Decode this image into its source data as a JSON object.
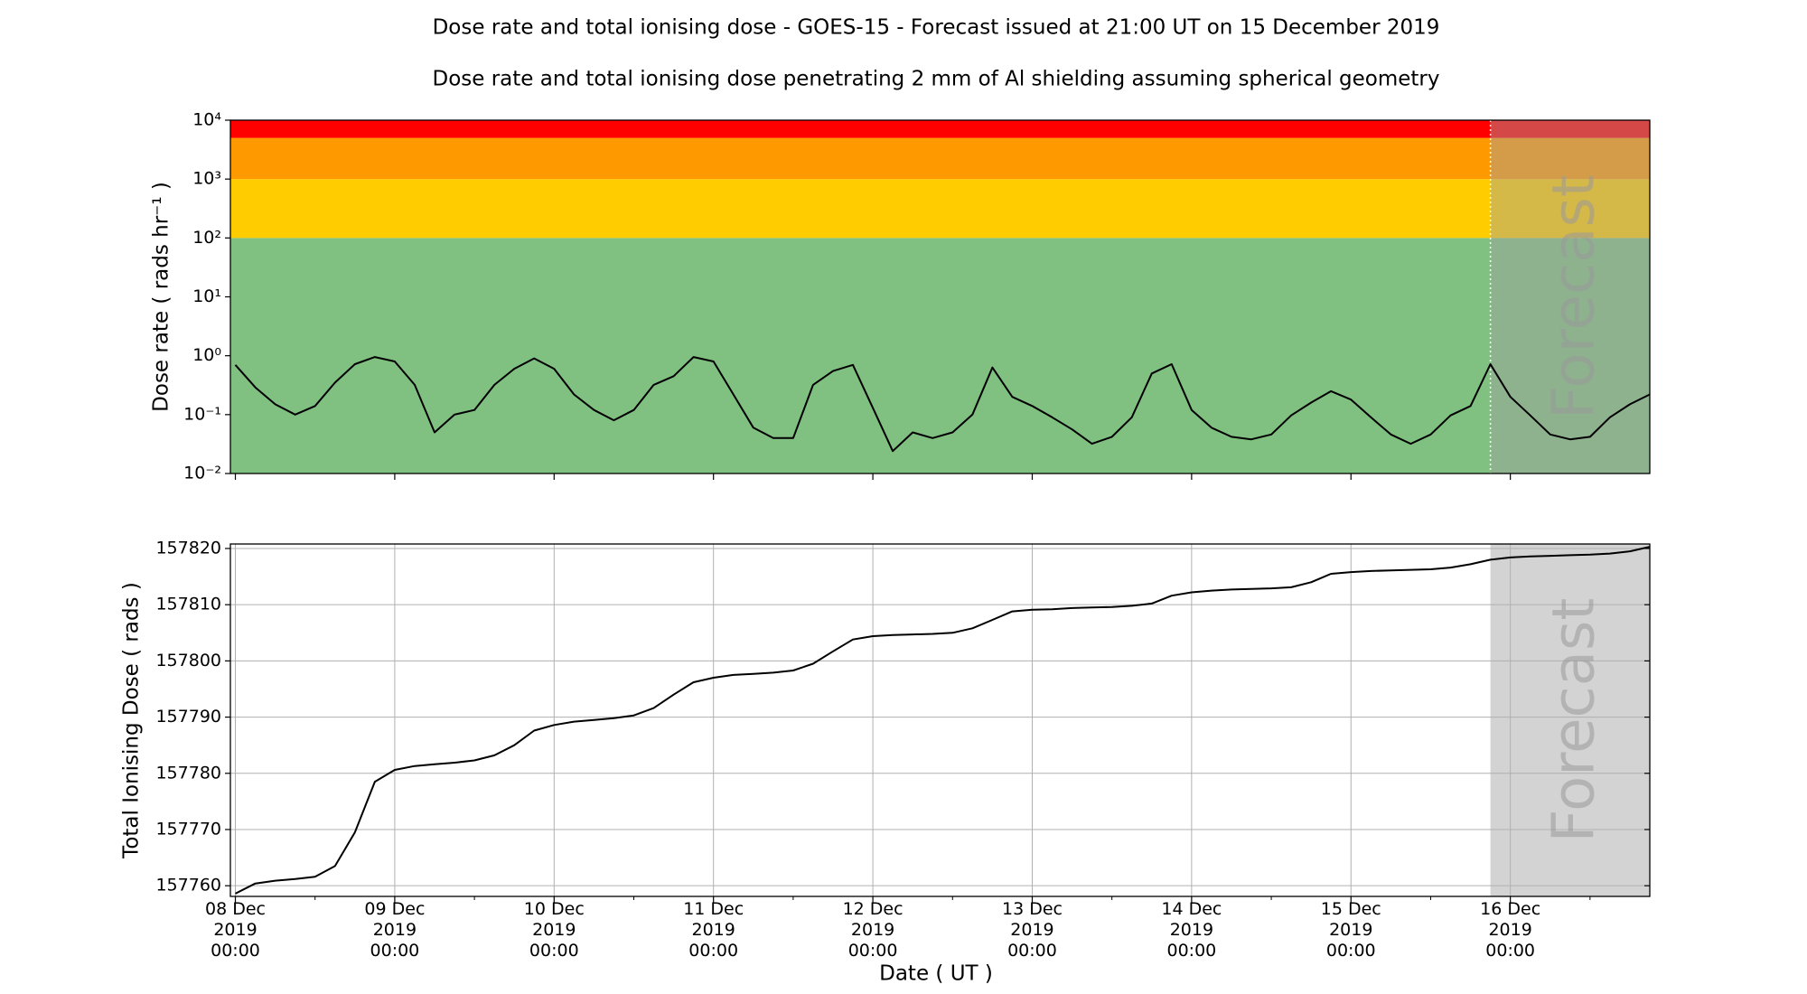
{
  "title": "Dose rate and total ionising dose - GOES-15 - Forecast issued at 21:00 UT on 15 December 2019",
  "subtitle": "Dose rate and total ionising dose penetrating 2 mm of Al shielding assuming spherical geometry",
  "chart_data": [
    {
      "type": "line",
      "ylabel": "Dose rate ( rads hr⁻¹ )",
      "log_y": true,
      "color": "#000000",
      "bands": [
        {
          "from": 0.01,
          "to": 100,
          "color": "#80c080"
        },
        {
          "from": 100,
          "to": 1000,
          "color": "#ffcc00"
        },
        {
          "from": 1000,
          "to": 5000,
          "color": "#ff9900"
        },
        {
          "from": 5000,
          "to": 10000,
          "color": "#ff0000"
        }
      ],
      "forecast": {
        "start": "2019-12-15 21:00",
        "label": "Forecast",
        "color": "#a0a0a0",
        "opacity": 0.45,
        "line_color": "#ffffff"
      },
      "xlim": [
        "2019-12-07 23:15",
        "2019-12-16 21:00"
      ],
      "xticks": [
        "2019-12-08 00:00",
        "2019-12-09 00:00",
        "2019-12-10 00:00",
        "2019-12-11 00:00",
        "2019-12-12 00:00",
        "2019-12-13 00:00",
        "2019-12-14 00:00",
        "2019-12-15 00:00",
        "2019-12-16 00:00"
      ],
      "ylim": [
        0.01,
        10000
      ],
      "yticks": [
        {
          "value": 0.01,
          "label": "10⁻²"
        },
        {
          "value": 0.1,
          "label": "10⁻¹"
        },
        {
          "value": 1,
          "label": "10⁰"
        },
        {
          "value": 10,
          "label": "10¹"
        },
        {
          "value": 100,
          "label": "10²"
        },
        {
          "value": 1000,
          "label": "10³"
        },
        {
          "value": 10000,
          "label": "10⁴"
        }
      ],
      "x": [
        "2019-12-08 00:00",
        "2019-12-08 03:00",
        "2019-12-08 06:00",
        "2019-12-08 09:00",
        "2019-12-08 12:00",
        "2019-12-08 15:00",
        "2019-12-08 18:00",
        "2019-12-08 21:00",
        "2019-12-09 00:00",
        "2019-12-09 03:00",
        "2019-12-09 06:00",
        "2019-12-09 09:00",
        "2019-12-09 12:00",
        "2019-12-09 15:00",
        "2019-12-09 18:00",
        "2019-12-09 21:00",
        "2019-12-10 00:00",
        "2019-12-10 03:00",
        "2019-12-10 06:00",
        "2019-12-10 09:00",
        "2019-12-10 12:00",
        "2019-12-10 15:00",
        "2019-12-10 18:00",
        "2019-12-10 21:00",
        "2019-12-11 00:00",
        "2019-12-11 03:00",
        "2019-12-11 06:00",
        "2019-12-11 09:00",
        "2019-12-11 12:00",
        "2019-12-11 15:00",
        "2019-12-11 18:00",
        "2019-12-11 21:00",
        "2019-12-12 00:00",
        "2019-12-12 03:00",
        "2019-12-12 06:00",
        "2019-12-12 09:00",
        "2019-12-12 12:00",
        "2019-12-12 15:00",
        "2019-12-12 18:00",
        "2019-12-12 21:00",
        "2019-12-13 00:00",
        "2019-12-13 03:00",
        "2019-12-13 06:00",
        "2019-12-13 09:00",
        "2019-12-13 12:00",
        "2019-12-13 15:00",
        "2019-12-13 18:00",
        "2019-12-13 21:00",
        "2019-12-14 00:00",
        "2019-12-14 03:00",
        "2019-12-14 06:00",
        "2019-12-14 09:00",
        "2019-12-14 12:00",
        "2019-12-14 15:00",
        "2019-12-14 18:00",
        "2019-12-14 21:00",
        "2019-12-15 00:00",
        "2019-12-15 03:00",
        "2019-12-15 06:00",
        "2019-12-15 09:00",
        "2019-12-15 12:00",
        "2019-12-15 15:00",
        "2019-12-15 18:00",
        "2019-12-15 21:00",
        "2019-12-16 00:00",
        "2019-12-16 03:00",
        "2019-12-16 06:00",
        "2019-12-16 09:00",
        "2019-12-16 12:00",
        "2019-12-16 15:00",
        "2019-12-16 18:00",
        "2019-12-16 21:00"
      ],
      "values": [
        0.7,
        0.29,
        0.15,
        0.1,
        0.14,
        0.35,
        0.72,
        0.95,
        0.8,
        0.32,
        0.05,
        0.1,
        0.12,
        0.32,
        0.6,
        0.9,
        0.6,
        0.22,
        0.12,
        0.08,
        0.12,
        0.32,
        0.45,
        0.95,
        0.8,
        0.22,
        0.06,
        0.04,
        0.04,
        0.32,
        0.55,
        0.7,
        0.13,
        0.024,
        0.05,
        0.04,
        0.05,
        0.1,
        0.63,
        0.2,
        0.14,
        0.09,
        0.056,
        0.032,
        0.042,
        0.09,
        0.5,
        0.72,
        0.12,
        0.06,
        0.042,
        0.038,
        0.046,
        0.097,
        0.16,
        0.25,
        0.18,
        0.09,
        0.046,
        0.032,
        0.046,
        0.097,
        0.14,
        0.72,
        0.2,
        0.097,
        0.046,
        0.038,
        0.042,
        0.09,
        0.15,
        0.22
      ]
    },
    {
      "type": "line",
      "ylabel": "Total Ionising Dose ( rads )",
      "xlabel": "Date ( UT )",
      "grid": true,
      "color": "#000000",
      "forecast": {
        "start": "2019-12-15 21:00",
        "label": "Forecast",
        "color": "#d3d3d3",
        "opacity": 1
      },
      "xlim": [
        "2019-12-07 23:15",
        "2019-12-16 21:00"
      ],
      "xticks": [
        {
          "value": "2019-12-08 00:00",
          "label": [
            "08 Dec",
            "2019",
            "00:00"
          ]
        },
        {
          "value": "2019-12-09 00:00",
          "label": [
            "09 Dec",
            "2019",
            "00:00"
          ]
        },
        {
          "value": "2019-12-10 00:00",
          "label": [
            "10 Dec",
            "2019",
            "00:00"
          ]
        },
        {
          "value": "2019-12-11 00:00",
          "label": [
            "11 Dec",
            "2019",
            "00:00"
          ]
        },
        {
          "value": "2019-12-12 00:00",
          "label": [
            "12 Dec",
            "2019",
            "00:00"
          ]
        },
        {
          "value": "2019-12-13 00:00",
          "label": [
            "13 Dec",
            "2019",
            "00:00"
          ]
        },
        {
          "value": "2019-12-14 00:00",
          "label": [
            "14 Dec",
            "2019",
            "00:00"
          ]
        },
        {
          "value": "2019-12-15 00:00",
          "label": [
            "15 Dec",
            "2019",
            "00:00"
          ]
        },
        {
          "value": "2019-12-16 00:00",
          "label": [
            "16 Dec",
            "2019",
            "00:00"
          ]
        }
      ],
      "xminorticks": [
        "2019-12-08 12:00",
        "2019-12-09 12:00",
        "2019-12-10 12:00",
        "2019-12-11 12:00",
        "2019-12-12 12:00",
        "2019-12-13 12:00",
        "2019-12-14 12:00",
        "2019-12-15 12:00",
        "2019-12-16 12:00"
      ],
      "ylim": [
        157758.1,
        157820.8
      ],
      "yticks": [
        157760,
        157770,
        157780,
        157790,
        157800,
        157810,
        157820
      ],
      "x": [
        "2019-12-08 00:00",
        "2019-12-08 03:00",
        "2019-12-08 06:00",
        "2019-12-08 09:00",
        "2019-12-08 12:00",
        "2019-12-08 15:00",
        "2019-12-08 18:00",
        "2019-12-08 21:00",
        "2019-12-09 00:00",
        "2019-12-09 03:00",
        "2019-12-09 06:00",
        "2019-12-09 09:00",
        "2019-12-09 12:00",
        "2019-12-09 15:00",
        "2019-12-09 18:00",
        "2019-12-09 21:00",
        "2019-12-10 00:00",
        "2019-12-10 03:00",
        "2019-12-10 06:00",
        "2019-12-10 09:00",
        "2019-12-10 12:00",
        "2019-12-10 15:00",
        "2019-12-10 18:00",
        "2019-12-10 21:00",
        "2019-12-11 00:00",
        "2019-12-11 03:00",
        "2019-12-11 06:00",
        "2019-12-11 09:00",
        "2019-12-11 12:00",
        "2019-12-11 15:00",
        "2019-12-11 18:00",
        "2019-12-11 21:00",
        "2019-12-12 00:00",
        "2019-12-12 03:00",
        "2019-12-12 06:00",
        "2019-12-12 09:00",
        "2019-12-12 12:00",
        "2019-12-12 15:00",
        "2019-12-12 18:00",
        "2019-12-12 21:00",
        "2019-12-13 00:00",
        "2019-12-13 03:00",
        "2019-12-13 06:00",
        "2019-12-13 09:00",
        "2019-12-13 12:00",
        "2019-12-13 15:00",
        "2019-12-13 18:00",
        "2019-12-13 21:00",
        "2019-12-14 00:00",
        "2019-12-14 03:00",
        "2019-12-14 06:00",
        "2019-12-14 09:00",
        "2019-12-14 12:00",
        "2019-12-14 15:00",
        "2019-12-14 18:00",
        "2019-12-14 21:00",
        "2019-12-15 00:00",
        "2019-12-15 03:00",
        "2019-12-15 06:00",
        "2019-12-15 09:00",
        "2019-12-15 12:00",
        "2019-12-15 15:00",
        "2019-12-15 18:00",
        "2019-12-15 21:00",
        "2019-12-16 00:00",
        "2019-12-16 03:00",
        "2019-12-16 06:00",
        "2019-12-16 09:00",
        "2019-12-16 12:00",
        "2019-12-16 15:00",
        "2019-12-16 18:00",
        "2019-12-16 21:00"
      ],
      "values": [
        157758.6,
        157760.4,
        157760.9,
        157761.2,
        157761.6,
        157763.5,
        157769.5,
        157778.5,
        157780.6,
        157781.3,
        157781.6,
        157781.9,
        157782.3,
        157783.2,
        157785.0,
        157787.6,
        157788.6,
        157789.2,
        157789.5,
        157789.8,
        157790.3,
        157791.6,
        157794.0,
        157796.2,
        157797.0,
        157797.5,
        157797.7,
        157797.9,
        157798.3,
        157799.5,
        157801.7,
        157803.8,
        157804.4,
        157804.6,
        157804.7,
        157804.8,
        157805.0,
        157805.8,
        157807.3,
        157808.8,
        157809.1,
        157809.2,
        157809.4,
        157809.5,
        157809.6,
        157809.8,
        157810.2,
        157811.6,
        157812.2,
        157812.5,
        157812.7,
        157812.8,
        157812.9,
        157813.1,
        157814.0,
        157815.5,
        157815.8,
        157816.0,
        157816.1,
        157816.2,
        157816.3,
        157816.6,
        157817.2,
        157818.0,
        157818.4,
        157818.6,
        157818.7,
        157818.8,
        157818.9,
        157819.1,
        157819.5,
        157820.3
      ]
    }
  ]
}
